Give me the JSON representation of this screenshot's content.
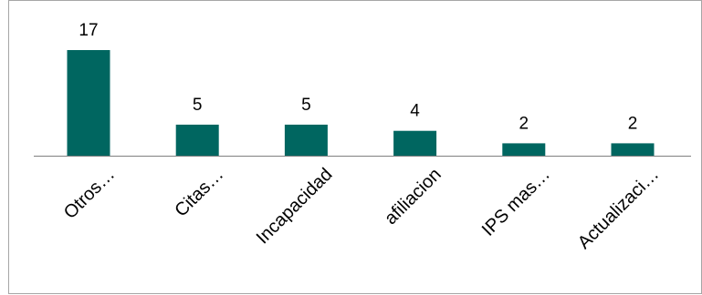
{
  "chart_data": {
    "type": "bar",
    "title": "",
    "xlabel": "",
    "ylabel": "",
    "categories": [
      "Otros…",
      "Citas…",
      "Incapacidad",
      "afiliacion",
      "IPS mas…",
      "Actualizaci…"
    ],
    "values": [
      17,
      5,
      5,
      4,
      2,
      2
    ],
    "data_labels": [
      "17",
      "5",
      "5",
      "4",
      "2",
      "2"
    ],
    "ylim": [
      0,
      17
    ],
    "grid": false,
    "legend": "none",
    "bar_color": "#006660",
    "axis_color": "#808080",
    "border_color": "#a6a6a6"
  }
}
